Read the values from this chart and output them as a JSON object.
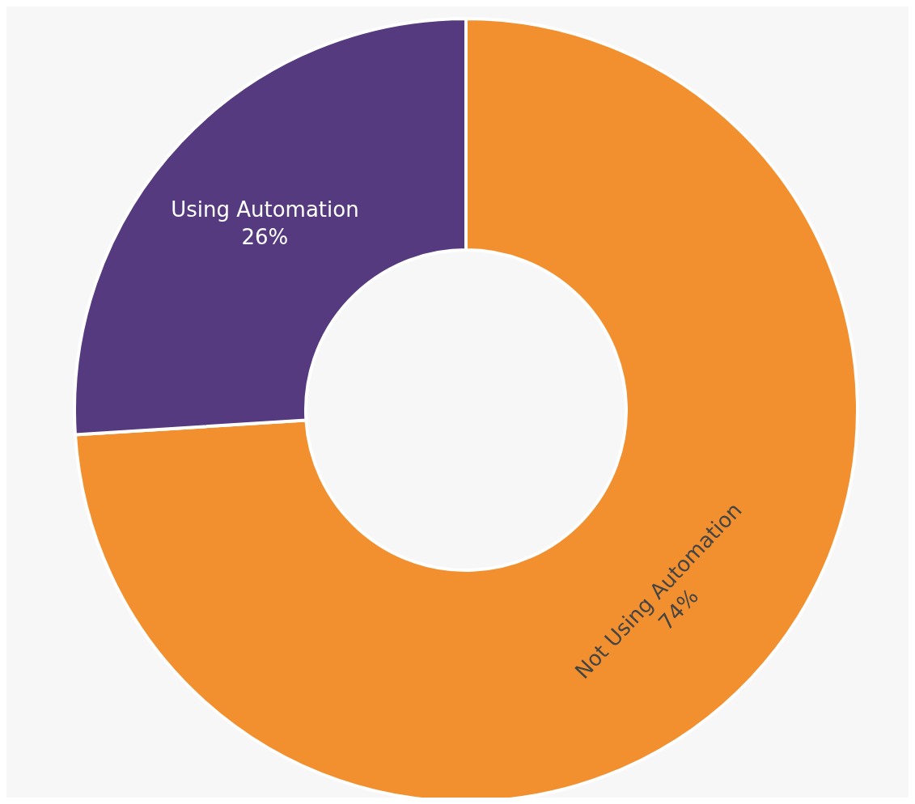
{
  "chart_data": {
    "type": "donut",
    "categories": [
      "Not Using Automation",
      "Using Automation"
    ],
    "values": [
      74,
      26
    ],
    "colors": [
      "#f2902f",
      "#553a80"
    ],
    "value_labels": [
      "74%",
      "26%"
    ]
  }
}
